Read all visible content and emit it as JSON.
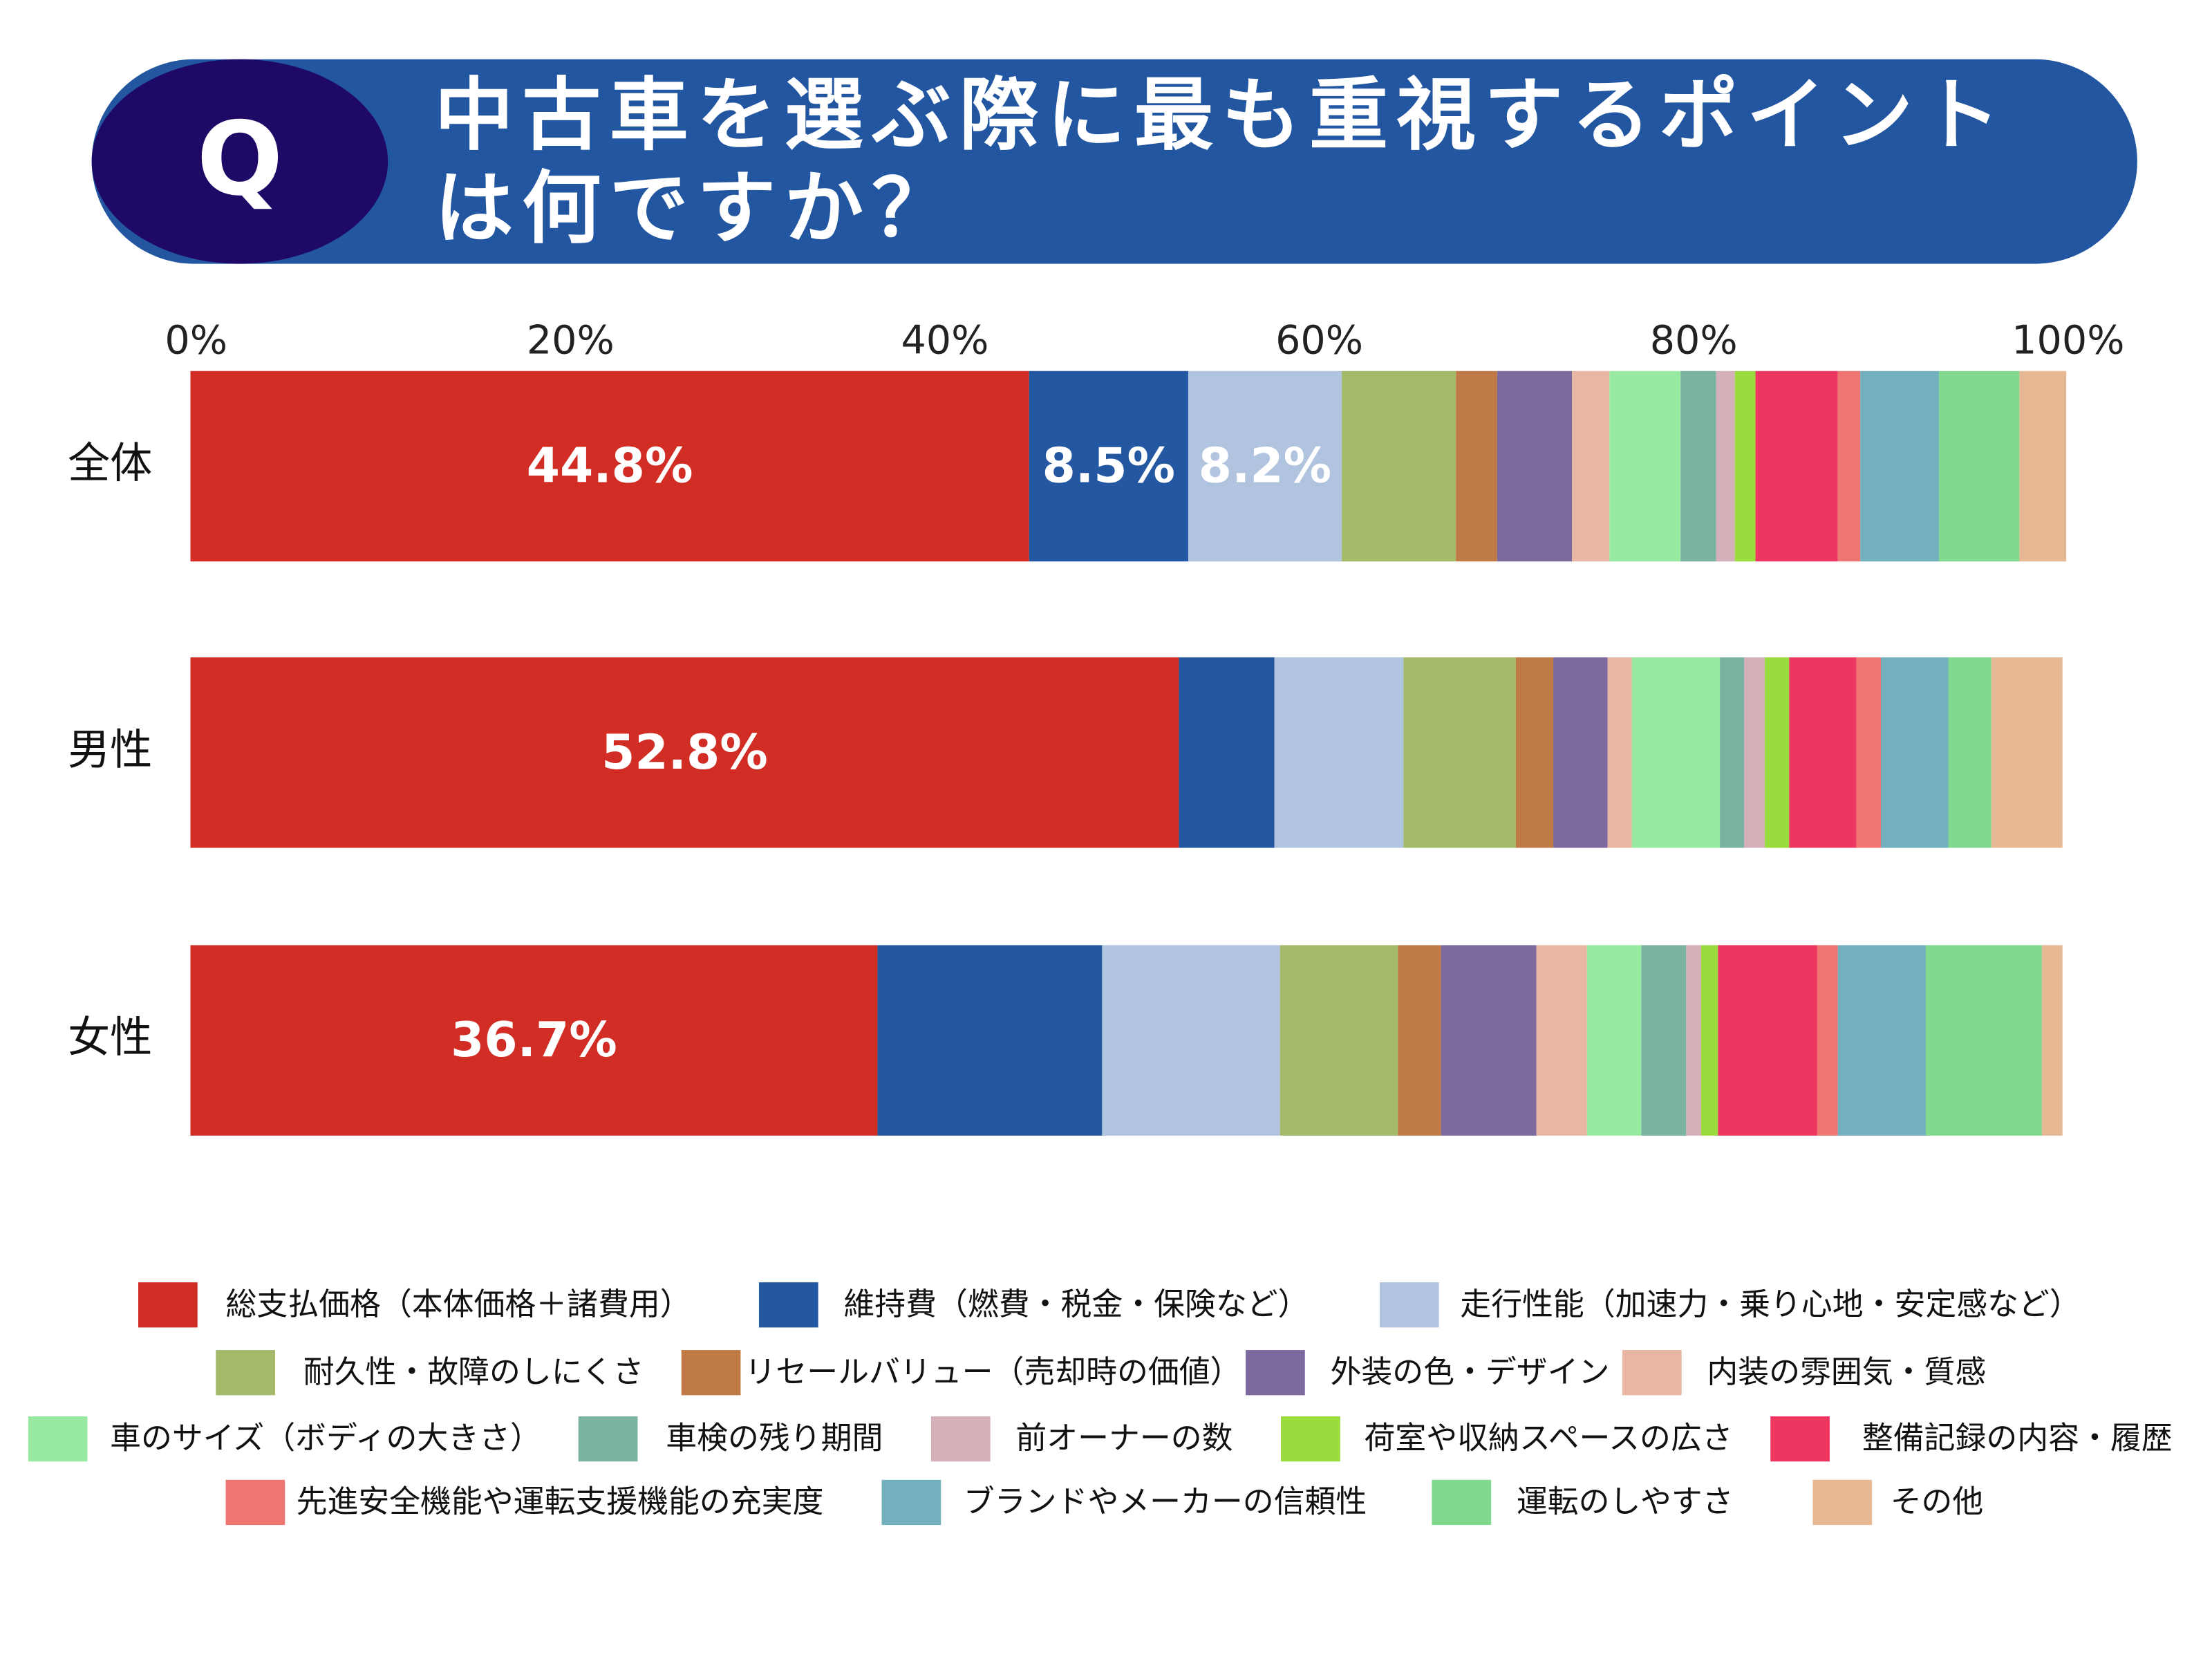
{
  "chart_data": {
    "type": "stacked-bar-horizontal",
    "badge": "Q",
    "title": "中古車を選ぶ際に最も重視するポイントは何ですか？",
    "categories": [
      "全体",
      "男性",
      "女性"
    ],
    "xlim": [
      0,
      100
    ],
    "xticks": [
      {
        "value": 0,
        "label": "0%"
      },
      {
        "value": 20,
        "label": "20%"
      },
      {
        "value": 40,
        "label": "40%"
      },
      {
        "value": 60,
        "label": "60%"
      },
      {
        "value": 80,
        "label": "80%"
      },
      {
        "value": 100,
        "label": "100%"
      }
    ],
    "grid": false,
    "series": [
      {
        "name": "総支払価格（本体価格＋諸費用）",
        "color": "#d22d24",
        "values": [
          44.8,
          52.8,
          36.7
        ],
        "value_labels": [
          "44.8%",
          "52.8%",
          "36.7%"
        ]
      },
      {
        "name": "維持費（燃費・税金・保険など）",
        "color": "#2357a1",
        "values": [
          8.5,
          5.1,
          12.0
        ],
        "value_labels": [
          "8.5%",
          null,
          null
        ]
      },
      {
        "name": "走行性能（加速力・乗り心地・安定感など）",
        "color": "#b0c4df",
        "values": [
          8.2,
          6.9,
          9.5
        ],
        "value_labels": [
          "8.2%",
          null,
          null
        ]
      },
      {
        "name": "耐久性・故障のしにくさ",
        "color": "#a4ba6a",
        "values": [
          6.1,
          6.0,
          6.3
        ]
      },
      {
        "name": "リセールバリュー（売却時の価値）",
        "color": "#c07a45",
        "values": [
          2.2,
          2.0,
          2.3
        ]
      },
      {
        "name": "外装の色・デザイン",
        "color": "#7c6a9e",
        "values": [
          4.0,
          2.9,
          5.1
        ]
      },
      {
        "name": "内装の雰囲気・質感",
        "color": "#e8b6a2",
        "values": [
          2.0,
          1.3,
          2.7
        ]
      },
      {
        "name": "車のサイズ（ボディの大きさ）",
        "color": "#98eaa0",
        "values": [
          3.8,
          4.7,
          2.9
        ]
      },
      {
        "name": "車検の残り期間",
        "color": "#7ab3a2",
        "values": [
          1.9,
          1.3,
          2.4
        ]
      },
      {
        "name": "前オーナーの数",
        "color": "#d4b1b8",
        "values": [
          1.0,
          1.1,
          0.8
        ]
      },
      {
        "name": "荷室や収納スペースの広さ",
        "color": "#9adc3e",
        "values": [
          1.1,
          1.3,
          0.9
        ]
      },
      {
        "name": "整備記録の内容・履歴",
        "color": "#ec3860",
        "values": [
          4.4,
          3.6,
          5.3
        ]
      },
      {
        "name": "先進安全機能や運転支援機能の充実度",
        "color": "#ee7570",
        "values": [
          1.2,
          1.3,
          1.1
        ]
      },
      {
        "name": "ブランドやメーカーの信頼性",
        "color": "#72b0bd",
        "values": [
          4.2,
          3.6,
          4.7
        ]
      },
      {
        "name": "運転のしやすさ",
        "color": "#80d98e",
        "values": [
          4.3,
          2.3,
          6.2
        ]
      },
      {
        "name": "その他",
        "color": "#e6b893",
        "values": [
          2.5,
          3.8,
          1.1
        ]
      }
    ]
  }
}
